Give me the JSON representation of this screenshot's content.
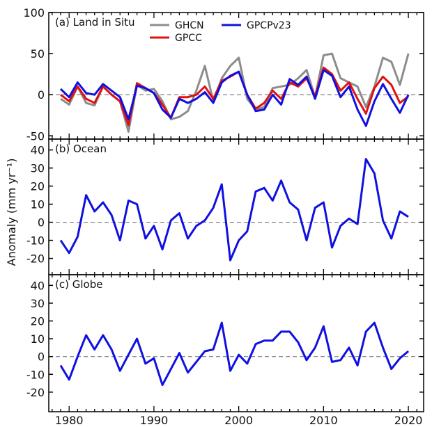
{
  "chart_data": {
    "type": "line",
    "ylabel": "Anomaly (mm yr⁻¹)",
    "x": [
      1979,
      1980,
      1981,
      1982,
      1983,
      1984,
      1985,
      1986,
      1987,
      1988,
      1989,
      1990,
      1991,
      1992,
      1993,
      1994,
      1995,
      1996,
      1997,
      1998,
      1999,
      2000,
      2001,
      2002,
      2003,
      2004,
      2005,
      2006,
      2007,
      2008,
      2009,
      2010,
      2011,
      2012,
      2013,
      2014,
      2015,
      2016,
      2017,
      2018,
      2019,
      2020
    ],
    "xlim": [
      1977.6,
      2021.8
    ],
    "xticks": [
      1980,
      1990,
      2000,
      2010,
      2020
    ],
    "colors": {
      "GHCN": "#8c8c8c",
      "GPCC": "#e01010",
      "GPCPv23": "#1010e0"
    },
    "panels": [
      {
        "title": "(a) Land in Situ",
        "ylim": [
          -54,
          100
        ],
        "yticks": [
          -50,
          0,
          50,
          100
        ],
        "legend": [
          "GHCN",
          "GPCC",
          "GPCPv23"
        ],
        "series": [
          {
            "name": "GHCN",
            "values": [
              -5,
              -12,
              10,
              -10,
              -13,
              10,
              0,
              -8,
              -45,
              12,
              5,
              7,
              -8,
              -30,
              -27,
              -20,
              5,
              35,
              -8,
              20,
              35,
              45,
              -5,
              -18,
              -15,
              8,
              10,
              12,
              20,
              30,
              -3,
              48,
              50,
              20,
              15,
              10,
              -15,
              10,
              45,
              40,
              12,
              50
            ]
          },
          {
            "name": "GPCC",
            "values": [
              0,
              -8,
              10,
              -5,
              -10,
              10,
              0,
              -8,
              -37,
              14,
              8,
              2,
              -12,
              -28,
              -3,
              -3,
              0,
              10,
              -5,
              17,
              22,
              28,
              0,
              -17,
              -10,
              5,
              -5,
              15,
              10,
              20,
              -2,
              33,
              25,
              5,
              15,
              -5,
              -23,
              8,
              22,
              12,
              -10,
              -2
            ]
          },
          {
            "name": "GPCPv23",
            "values": [
              7,
              -3,
              15,
              2,
              0,
              13,
              5,
              -3,
              -30,
              11,
              8,
              2,
              -18,
              -28,
              -5,
              -10,
              -5,
              3,
              -10,
              15,
              23,
              28,
              0,
              -20,
              -18,
              0,
              -12,
              19,
              12,
              22,
              -5,
              30,
              23,
              -3,
              10,
              -18,
              -38,
              -8,
              13,
              -5,
              -22,
              0
            ]
          }
        ]
      },
      {
        "title": "(b) Ocean",
        "ylim": [
          -29,
          46
        ],
        "yticks": [
          -20,
          -10,
          0,
          10,
          20,
          30,
          40
        ],
        "series": [
          {
            "name": "GPCPv23",
            "values": [
              -10,
              -17,
              -8,
              15,
              6,
              11,
              4,
              -10,
              12,
              10,
              -9,
              -2,
              -15,
              1,
              5,
              -9,
              -2,
              1,
              8,
              21,
              -21,
              -10,
              -5,
              17,
              19,
              12,
              23,
              11,
              7,
              -10,
              8,
              11,
              -14,
              -2,
              2,
              -1,
              35,
              27,
              1,
              -9,
              6,
              3
            ]
          }
        ]
      },
      {
        "title": "(c) Globe",
        "ylim": [
          -31,
          46
        ],
        "yticks": [
          -20,
          -10,
          0,
          10,
          20,
          30,
          40
        ],
        "series": [
          {
            "name": "GPCPv23",
            "values": [
              -5,
              -13,
              0,
              12,
              4,
              12,
              4,
              -8,
              1,
              10,
              -4,
              -1,
              -16,
              -7,
              2,
              -9,
              -3,
              3,
              4,
              19,
              -8,
              1,
              -4,
              7,
              9,
              9,
              14,
              14,
              8,
              -2,
              5,
              17,
              -3,
              -2,
              5,
              -5,
              14,
              19,
              5,
              -7,
              -1,
              3
            ]
          }
        ]
      }
    ]
  }
}
